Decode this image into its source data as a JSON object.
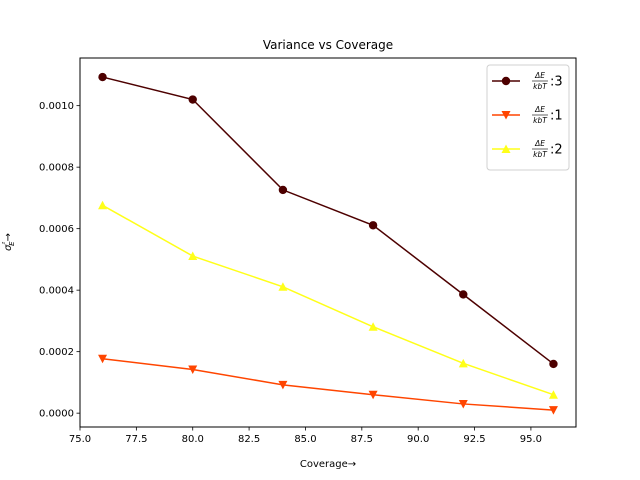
{
  "chart_data": {
    "type": "line",
    "title": "Variance vs Coverage",
    "xlabel": "Coverage→",
    "ylabel": "σ²E→",
    "xlim": [
      75.0,
      97.0
    ],
    "ylim": [
      -4.5e-05,
      0.001155
    ],
    "xticks": [
      75.0,
      77.5,
      80.0,
      82.5,
      85.0,
      87.5,
      90.0,
      92.5,
      95.0
    ],
    "xtick_labels": [
      "75.0",
      "77.5",
      "80.0",
      "82.5",
      "85.0",
      "87.5",
      "90.0",
      "92.5",
      "95.0"
    ],
    "yticks": [
      0.0,
      0.0002,
      0.0004,
      0.0006,
      0.0008,
      0.001
    ],
    "ytick_labels": [
      "0.0000",
      "0.0002",
      "0.0004",
      "0.0006",
      "0.0008",
      "0.0010"
    ],
    "grid": false,
    "legend_position": "top-right",
    "x": [
      76,
      80,
      84,
      88,
      92,
      96
    ],
    "series": [
      {
        "name": "ΔE/kbT:3",
        "frac_num": "ΔE",
        "frac_den": "kbT",
        "suffix": ":3",
        "color": "#4d0000",
        "marker": "circle",
        "values": [
          0.001093,
          0.00102,
          0.000726,
          0.000611,
          0.000386,
          0.00016
        ]
      },
      {
        "name": "ΔE/kbT:1",
        "frac_num": "ΔE",
        "frac_den": "kbT",
        "suffix": ":1",
        "color": "#ff4500",
        "marker": "triangle-down",
        "values": [
          0.000177,
          0.000142,
          9.2e-05,
          6e-05,
          3e-05,
          1e-05
        ]
      },
      {
        "name": "ΔE/kbT:2",
        "frac_num": "ΔE",
        "frac_den": "kbT",
        "suffix": ":2",
        "color": "#ffff19",
        "marker": "triangle-up",
        "values": [
          0.000676,
          0.000511,
          0.000411,
          0.000281,
          0.000162,
          6e-05
        ]
      }
    ]
  }
}
